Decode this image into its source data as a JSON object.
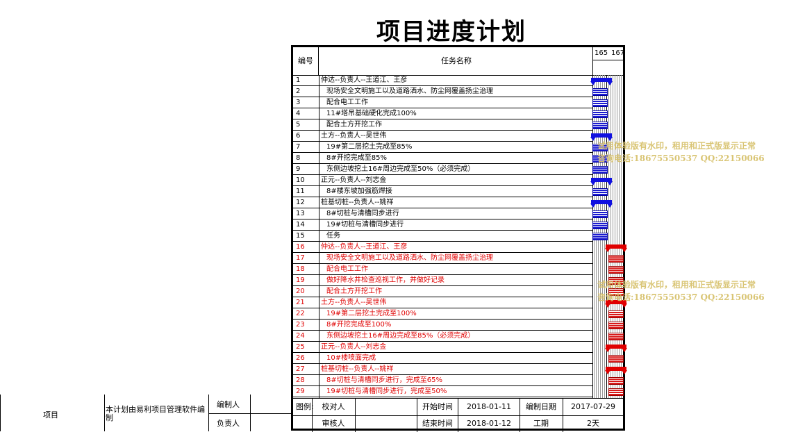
{
  "title": "项目进度计划",
  "header": {
    "num": "编号",
    "name": "任务名称",
    "day1": "165",
    "day2": "167"
  },
  "tasks": [
    {
      "n": "1",
      "name": "仲达--负责人--王道江、王彦",
      "color": "blue",
      "indent": 0
    },
    {
      "n": "2",
      "name": "现场安全文明施工以及道路洒水、防尘网覆盖扬尘治理",
      "color": "blue",
      "indent": 1
    },
    {
      "n": "3",
      "name": "配合电工工作",
      "color": "blue",
      "indent": 1
    },
    {
      "n": "4",
      "name": "11#塔吊基础硬化完成100%",
      "color": "blue",
      "indent": 1
    },
    {
      "n": "5",
      "name": "配合土方开挖工作",
      "color": "blue",
      "indent": 1
    },
    {
      "n": "6",
      "name": "土方--负责人--吴世伟",
      "color": "blue",
      "indent": 0
    },
    {
      "n": "7",
      "name": "19#第二层挖土完成至85%",
      "color": "blue",
      "indent": 1
    },
    {
      "n": "8",
      "name": "8#开挖完成至85%",
      "color": "blue",
      "indent": 1
    },
    {
      "n": "9",
      "name": "东侧边坡挖土16#周边完成至50%（必须完成）",
      "color": "blue",
      "indent": 1
    },
    {
      "n": "10",
      "name": "正元--负责人--刘志金",
      "color": "blue",
      "indent": 0
    },
    {
      "n": "11",
      "name": "8#楼东坡加强筋焊接",
      "color": "blue",
      "indent": 1
    },
    {
      "n": "12",
      "name": "桩基切桩--负责人--姚祥",
      "color": "blue",
      "indent": 0
    },
    {
      "n": "13",
      "name": "8#切桩与清槽同步进行",
      "color": "blue",
      "indent": 1
    },
    {
      "n": "14",
      "name": "19#切桩与清槽同步进行",
      "color": "blue",
      "indent": 1
    },
    {
      "n": "15",
      "name": "任务",
      "color": "blue",
      "indent": 1
    },
    {
      "n": "16",
      "name": "仲达--负责人--王道江、王彦",
      "color": "red",
      "indent": 0
    },
    {
      "n": "17",
      "name": "现场安全文明施工以及道路洒水、防尘网覆盖扬尘治理",
      "color": "red",
      "indent": 1
    },
    {
      "n": "18",
      "name": "配合电工工作",
      "color": "red",
      "indent": 1
    },
    {
      "n": "19",
      "name": "做好降水井检查巡视工作，并做好记录",
      "color": "red",
      "indent": 1
    },
    {
      "n": "20",
      "name": "配合土方开挖工作",
      "color": "red",
      "indent": 1
    },
    {
      "n": "21",
      "name": "土方--负责人--吴世伟",
      "color": "red",
      "indent": 0
    },
    {
      "n": "22",
      "name": "19#第二层挖土完成至100%",
      "color": "red",
      "indent": 1
    },
    {
      "n": "23",
      "name": "8#开挖完成至100%",
      "color": "red",
      "indent": 1
    },
    {
      "n": "24",
      "name": "东侧边坡挖土16#周边完成至85%（必须完成）",
      "color": "red",
      "indent": 1
    },
    {
      "n": "25",
      "name": "正元--负责人--刘志金",
      "color": "red",
      "indent": 0
    },
    {
      "n": "26",
      "name": "10#楼喷面完成",
      "color": "red",
      "indent": 1
    },
    {
      "n": "27",
      "name": "桩基切桩--负责人--姚祥",
      "color": "red",
      "indent": 0
    },
    {
      "n": "28",
      "name": "8#切桩与清槽同步进行，完成至65%",
      "color": "red",
      "indent": 1
    },
    {
      "n": "29",
      "name": "19#切桩与清槽同步进行，完成至50%",
      "color": "red",
      "indent": 1
    }
  ],
  "legend_label": "图例:",
  "footer": {
    "checker_label": "校对人",
    "reviewer_label": "审核人",
    "start_label": "开始时间",
    "start_value": "2018-01-11",
    "end_label": "结束时间",
    "end_value": "2018-01-12",
    "compile_date_label": "编制日期",
    "compile_date_value": "2017-07-29",
    "period_label": "工期",
    "period_value": "2天"
  },
  "left_block": {
    "project_label": "项目",
    "note": "本计划由易利项目管理软件编制",
    "compiler_label": "编制人",
    "owner_label": "负责人"
  },
  "watermark": {
    "line1": "试用体验版有水印，租用和正式版显示正常",
    "line2": "咨询电话:18675550537 QQ:22150066"
  }
}
